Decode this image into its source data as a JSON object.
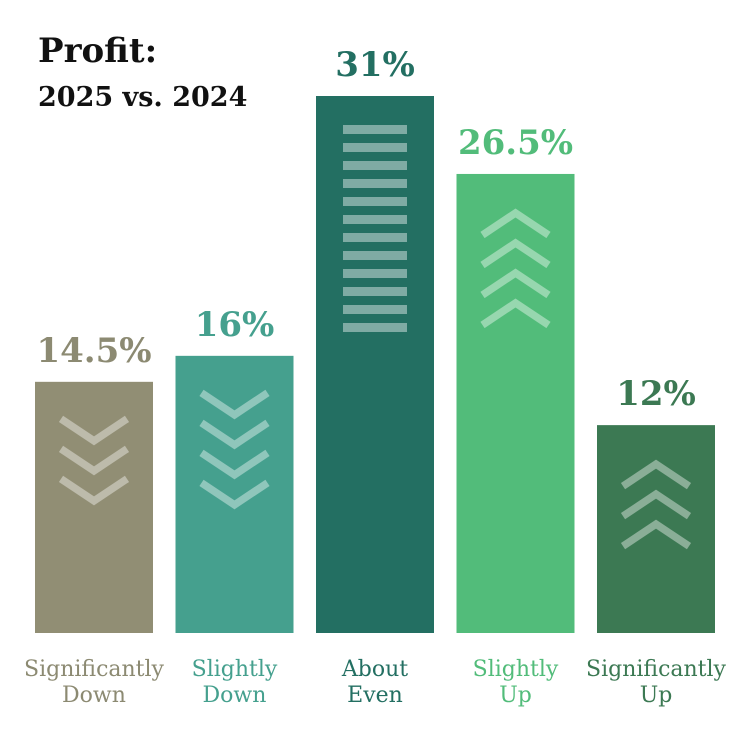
{
  "title": "Profit:",
  "subtitle": "2025 vs. 2024",
  "chart_data": {
    "type": "bar",
    "title": "Profit:",
    "subtitle": "2025 vs. 2024",
    "categories": [
      [
        "Significantly",
        "Down"
      ],
      [
        "Slightly",
        "Down"
      ],
      [
        "About",
        "Even"
      ],
      [
        "Slightly",
        "Up"
      ],
      [
        "Significantly",
        "Up"
      ]
    ],
    "values": [
      14.5,
      16,
      31,
      26.5,
      12
    ],
    "value_labels": [
      "14.5%",
      "16%",
      "31%",
      "26.5%",
      "12%"
    ],
    "ylim": [
      0,
      31
    ],
    "grid": false,
    "legend": "none",
    "bar_colors": [
      "#918e74",
      "#45a08e",
      "#236f62",
      "#52bc7a",
      "#3c7953"
    ],
    "label_colors": [
      "#8c8a72",
      "#45a08e",
      "#236f62",
      "#52bc7a",
      "#3c7953"
    ],
    "bar_icons": [
      "chevrons-down-icon",
      "chevrons-down-icon",
      "equals-bars-icon",
      "chevrons-up-icon",
      "chevrons-up-icon"
    ],
    "icon_color": "#ffffff"
  }
}
